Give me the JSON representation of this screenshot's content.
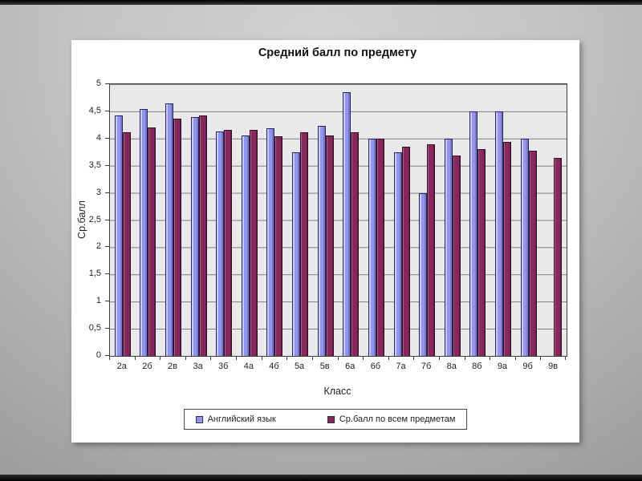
{
  "chart_data": {
    "type": "bar",
    "title": "Средний балл по предмету",
    "xlabel": "Класс",
    "ylabel": "Ср.балл",
    "ylim": [
      0,
      5
    ],
    "grid": true,
    "legend_position": "bottom",
    "y_ticks": [
      "5",
      "4,5",
      "4",
      "3,5",
      "3",
      "2,5",
      "2",
      "1,5",
      "1",
      "0,5",
      "0"
    ],
    "categories": [
      "2а",
      "2б",
      "2в",
      "3а",
      "3б",
      "4а",
      "4б",
      "5а",
      "5в",
      "6а",
      "6б",
      "7а",
      "7б",
      "8а",
      "8б",
      "9а",
      "9б",
      "9в"
    ],
    "series": [
      {
        "name": "Английский язык",
        "color": "#9295f0",
        "values": [
          4.42,
          4.55,
          4.65,
          4.39,
          4.13,
          4.06,
          4.19,
          3.74,
          4.24,
          4.85,
          4.0,
          3.75,
          3.0,
          4.0,
          4.5,
          4.5,
          4.0,
          null
        ]
      },
      {
        "name": "Ср.балл по всем предметам",
        "color": "#86285d",
        "values": [
          4.11,
          4.21,
          4.36,
          4.43,
          4.16,
          4.16,
          4.04,
          4.12,
          4.06,
          4.11,
          4.0,
          3.85,
          3.89,
          3.69,
          3.8,
          3.94,
          3.78,
          3.64
        ]
      }
    ]
  },
  "colors": {
    "plot_background": "#e9e9e9",
    "gridline": "#7f7f7f",
    "panel_background": "#ffffff",
    "series_english": "#9295f0",
    "series_average": "#86285d"
  }
}
